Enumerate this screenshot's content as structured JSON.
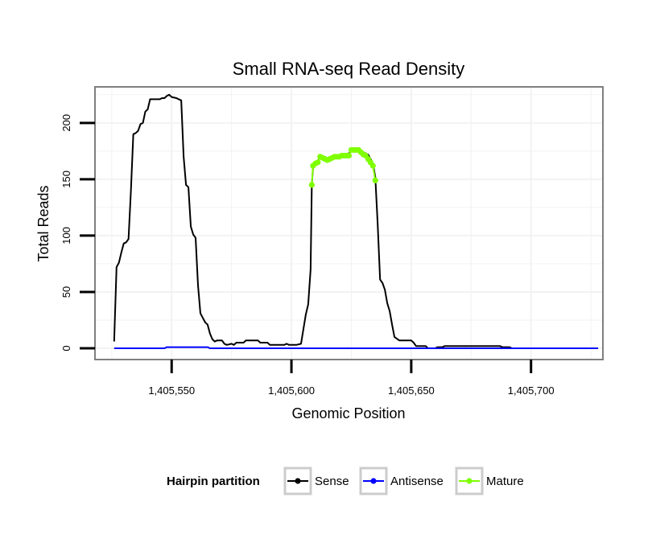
{
  "chart_data": {
    "type": "line",
    "title": "Small RNA-seq Read Density",
    "xlabel": "Genomic Position",
    "ylabel": "Total Reads",
    "xlim": [
      1405518,
      1405730
    ],
    "ylim": [
      -10,
      232
    ],
    "x_ticks": [
      1405550,
      1405600,
      1405650,
      1405700
    ],
    "x_tick_labels": [
      "1,405,550",
      "1,405,600",
      "1,405,650",
      "1,405,700"
    ],
    "y_ticks": [
      0,
      50,
      100,
      150,
      200
    ],
    "y_tick_labels": [
      "0",
      "50",
      "100",
      "150",
      "200"
    ],
    "grid": true,
    "legend": {
      "title": "Hairpin partition",
      "position": "bottom",
      "entries": [
        {
          "name": "Sense",
          "color": "#000000"
        },
        {
          "name": "Antisense",
          "color": "#0000ff"
        },
        {
          "name": "Mature",
          "color": "#7fff00"
        }
      ]
    },
    "series": [
      {
        "name": "Sense",
        "color": "#000000",
        "points": [
          [
            1405526,
            6
          ],
          [
            1405527,
            72
          ],
          [
            1405528,
            76
          ],
          [
            1405529,
            85
          ],
          [
            1405530,
            93
          ],
          [
            1405531,
            94
          ],
          [
            1405532,
            97
          ],
          [
            1405533,
            140
          ],
          [
            1405534,
            190
          ],
          [
            1405535,
            191
          ],
          [
            1405536,
            193
          ],
          [
            1405537,
            199
          ],
          [
            1405538,
            200
          ],
          [
            1405539,
            210
          ],
          [
            1405540,
            212
          ],
          [
            1405541,
            221
          ],
          [
            1405545,
            221
          ],
          [
            1405546,
            222
          ],
          [
            1405547,
            222
          ],
          [
            1405548,
            224
          ],
          [
            1405549,
            225
          ],
          [
            1405550,
            223
          ],
          [
            1405552,
            222
          ],
          [
            1405553,
            221
          ],
          [
            1405554,
            220
          ],
          [
            1405555,
            170
          ],
          [
            1405556,
            145
          ],
          [
            1405557,
            143
          ],
          [
            1405558,
            108
          ],
          [
            1405559,
            101
          ],
          [
            1405560,
            98
          ],
          [
            1405561,
            56
          ],
          [
            1405562,
            31
          ],
          [
            1405563,
            27
          ],
          [
            1405564,
            23
          ],
          [
            1405565,
            21
          ],
          [
            1405566,
            13
          ],
          [
            1405567,
            8
          ],
          [
            1405568,
            6
          ],
          [
            1405569,
            7
          ],
          [
            1405571,
            7
          ],
          [
            1405572,
            4
          ],
          [
            1405573,
            3
          ],
          [
            1405575,
            4
          ],
          [
            1405576,
            3
          ],
          [
            1405577,
            5
          ],
          [
            1405580,
            5
          ],
          [
            1405581,
            7
          ],
          [
            1405586,
            7
          ],
          [
            1405587,
            5
          ],
          [
            1405590,
            5
          ],
          [
            1405591,
            3
          ],
          [
            1405597,
            3
          ],
          [
            1405598,
            4
          ],
          [
            1405599,
            3
          ],
          [
            1405600,
            3
          ],
          [
            1405602,
            3
          ],
          [
            1405604,
            4
          ],
          [
            1405606,
            30
          ],
          [
            1405607,
            39
          ],
          [
            1405608,
            70
          ],
          [
            1405608.5,
            145
          ],
          [
            1405609,
            160
          ],
          [
            1405610,
            163
          ],
          [
            1405611,
            166
          ],
          [
            1405612,
            170
          ],
          [
            1405614,
            170
          ],
          [
            1405615,
            167
          ],
          [
            1405616,
            168
          ],
          [
            1405618,
            171
          ],
          [
            1405620,
            171
          ],
          [
            1405622,
            172
          ],
          [
            1405624,
            173
          ],
          [
            1405626,
            177
          ],
          [
            1405628,
            177
          ],
          [
            1405630,
            174
          ],
          [
            1405632,
            172
          ],
          [
            1405633,
            168
          ],
          [
            1405634,
            164
          ],
          [
            1405635,
            152
          ],
          [
            1405636,
            110
          ],
          [
            1405637,
            61
          ],
          [
            1405638,
            58
          ],
          [
            1405639,
            52
          ],
          [
            1405640,
            40
          ],
          [
            1405641,
            33
          ],
          [
            1405642,
            21
          ],
          [
            1405643,
            10
          ],
          [
            1405645,
            7
          ],
          [
            1405650,
            7
          ],
          [
            1405651,
            5
          ],
          [
            1405652,
            2
          ],
          [
            1405656,
            2
          ],
          [
            1405657,
            0
          ],
          [
            1405660,
            0
          ],
          [
            1405661,
            1
          ],
          [
            1405663,
            1
          ],
          [
            1405664,
            2
          ],
          [
            1405687,
            2
          ],
          [
            1405688,
            1
          ],
          [
            1405691,
            1
          ],
          [
            1405692,
            0
          ],
          [
            1405728,
            0
          ]
        ]
      },
      {
        "name": "Antisense",
        "color": "#0000ff",
        "points": [
          [
            1405526,
            0
          ],
          [
            1405547,
            0
          ],
          [
            1405548,
            1
          ],
          [
            1405565,
            1
          ],
          [
            1405566,
            0
          ],
          [
            1405728,
            0
          ]
        ]
      },
      {
        "name": "Mature",
        "color": "#7fff00",
        "points": [
          [
            1405608.5,
            145
          ],
          [
            1405609,
            162
          ],
          [
            1405610,
            164
          ],
          [
            1405611,
            165
          ],
          [
            1405612,
            170
          ],
          [
            1405613,
            169
          ],
          [
            1405614,
            168
          ],
          [
            1405615,
            167
          ],
          [
            1405616,
            168
          ],
          [
            1405617,
            169
          ],
          [
            1405618,
            170
          ],
          [
            1405619,
            170
          ],
          [
            1405620,
            170
          ],
          [
            1405621,
            171
          ],
          [
            1405622,
            171
          ],
          [
            1405623,
            171
          ],
          [
            1405624,
            171
          ],
          [
            1405625,
            176
          ],
          [
            1405626,
            176
          ],
          [
            1405627,
            176
          ],
          [
            1405628,
            176
          ],
          [
            1405629,
            174
          ],
          [
            1405630,
            172
          ],
          [
            1405631,
            171
          ],
          [
            1405632,
            168
          ],
          [
            1405633,
            165
          ],
          [
            1405634,
            162
          ],
          [
            1405635,
            149
          ]
        ]
      }
    ]
  }
}
